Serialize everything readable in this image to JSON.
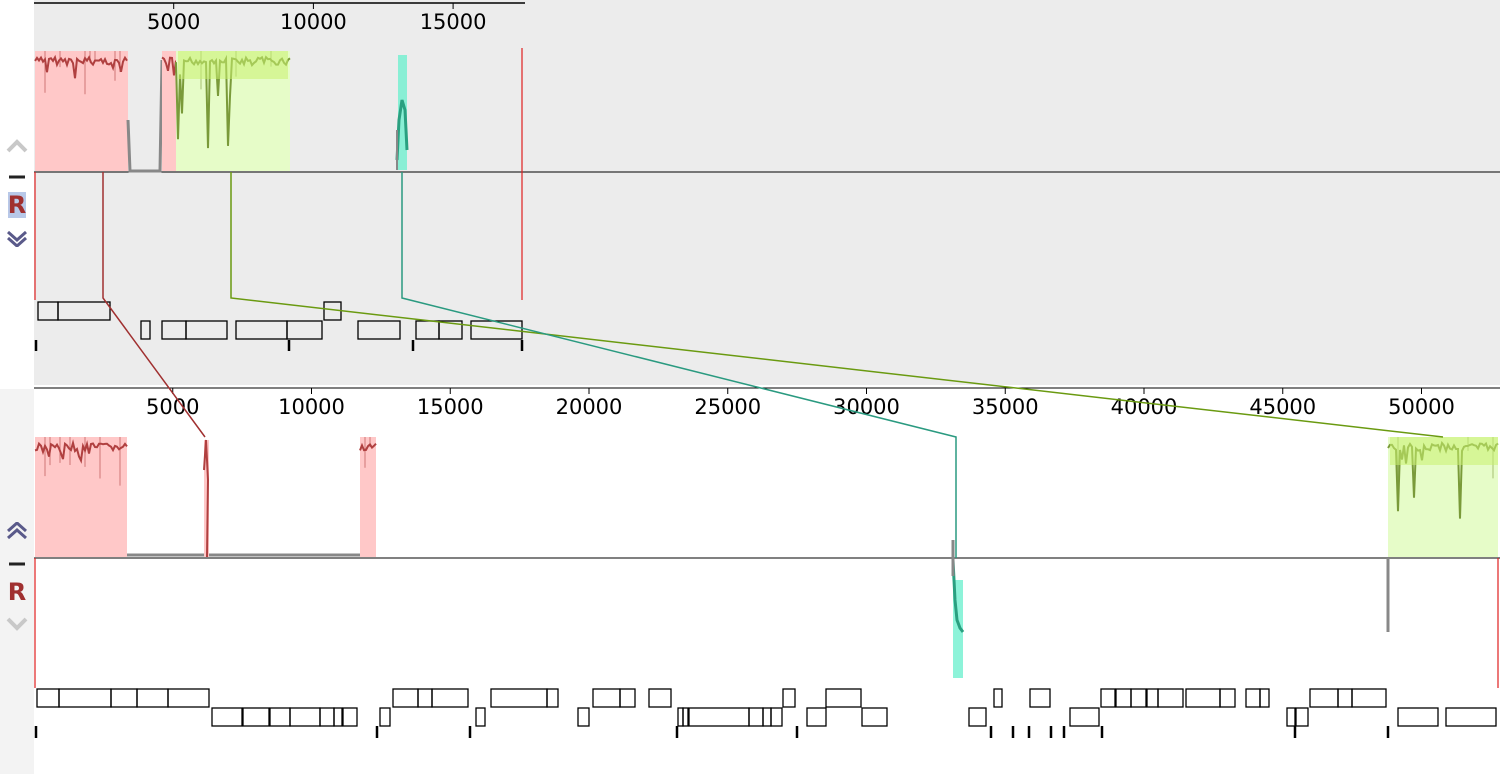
{
  "top_genome": {
    "ruler_ticks": [
      "5000",
      "10000",
      "15000"
    ],
    "ruler_values": [
      5000,
      10000,
      15000
    ],
    "length": 17500,
    "controls": {
      "up_icon": "chevron-up-icon",
      "minus_label": "–",
      "r_label": "R",
      "down_icon": "chevron-down-icon"
    }
  },
  "bottom_genome": {
    "ruler_ticks": [
      "5000",
      "10000",
      "15000",
      "20000",
      "25000",
      "30000",
      "35000",
      "40000",
      "45000",
      "50000"
    ],
    "ruler_values": [
      5000,
      10000,
      15000,
      20000,
      25000,
      30000,
      35000,
      40000,
      45000,
      50000
    ],
    "length": 53000,
    "controls": {
      "up_icon": "chevron-up-icon",
      "minus_label": "–",
      "r_label": "R",
      "down_icon": "chevron-down-icon"
    }
  },
  "colors": {
    "block_red": "#b04040",
    "block_red_fill": "#ffc8c8",
    "block_green": "#7a9a3a",
    "block_green_fill": "#e6fcc8",
    "block_green_bright": "#c8f070",
    "block_teal": "#2aa080",
    "block_teal_fill": "#70f0d0",
    "connector_red": "#a03030",
    "connector_olive": "#6a9a10",
    "connector_teal": "#2a9a80"
  }
}
